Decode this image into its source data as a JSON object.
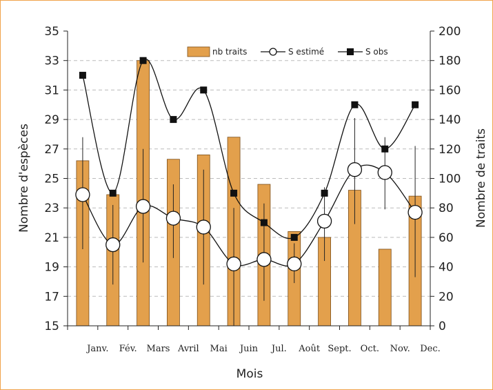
{
  "chart_data": {
    "type": "bar",
    "categories": [
      "Janv.",
      "Fév.",
      "Mars",
      "Avril",
      "Mai",
      "Juin",
      "Jul.",
      "Août",
      "Sept.",
      "Oct.",
      "Nov.",
      "Dec."
    ],
    "series": [
      {
        "name": "nb traits",
        "type": "bar",
        "axis": "right",
        "values": [
          112,
          89,
          180,
          113,
          116,
          128,
          96,
          64,
          60,
          92,
          52,
          88
        ]
      },
      {
        "name": "S estimé",
        "type": "line",
        "marker": "circle",
        "axis": "left",
        "values": [
          23.9,
          20.5,
          23.1,
          22.3,
          21.7,
          19.2,
          19.5,
          19.2,
          22.1,
          25.6,
          25.4,
          22.7
        ],
        "error_low": [
          20.2,
          17.8,
          19.3,
          19.6,
          17.8,
          15.0,
          16.7,
          17.9,
          19.4,
          21.9,
          22.9,
          18.3
        ],
        "error_high": [
          27.8,
          23.2,
          27.0,
          24.6,
          25.6,
          23.0,
          23.3,
          20.6,
          24.4,
          29.1,
          27.8,
          27.2
        ]
      },
      {
        "name": "S obs",
        "type": "line",
        "marker": "square",
        "axis": "left",
        "values": [
          32,
          24,
          33,
          29,
          31,
          24,
          22,
          21,
          24,
          30,
          27,
          30
        ]
      }
    ],
    "xlabel": "Mois",
    "ylabel": "Nombre d'espèces",
    "ylabel_right": "Nombre de traits",
    "ylim": [
      15,
      35
    ],
    "ylim_right": [
      0,
      200
    ],
    "yticks": [
      "15",
      "17",
      "19",
      "21",
      "23",
      "25",
      "27",
      "29",
      "31",
      "33",
      "35"
    ],
    "yticks_right": [
      "0",
      "20",
      "40",
      "60",
      "80",
      "100",
      "120",
      "140",
      "160",
      "180",
      "200"
    ],
    "grid": "horizontal dashed",
    "legend_position": "top-right",
    "colors": {
      "bar": "#e3a04c",
      "bar_edge": "#7a4e1a",
      "line": "#111111",
      "grid": "#bbbbbb",
      "frame": "#f0a24a"
    }
  }
}
